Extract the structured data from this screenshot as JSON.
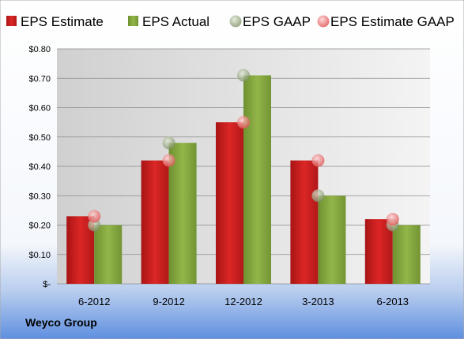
{
  "company": "Weyco Group",
  "colors": {
    "estimate": "#cc1f1f",
    "actual": "#86a83c",
    "gaap": "#98a884",
    "estimate_gaap": "#f07a7a"
  },
  "chart_data": {
    "type": "bar",
    "categories": [
      "6-2012",
      "9-2012",
      "12-2012",
      "3-2013",
      "6-2013"
    ],
    "series": [
      {
        "name": "EPS Estimate",
        "kind": "bar",
        "values": [
          0.23,
          0.42,
          0.55,
          0.42,
          0.22
        ]
      },
      {
        "name": "EPS Actual",
        "kind": "bar",
        "values": [
          0.2,
          0.48,
          0.71,
          0.3,
          0.2
        ]
      },
      {
        "name": "EPS GAAP",
        "kind": "scatter",
        "values": [
          0.2,
          0.48,
          0.71,
          0.3,
          0.2
        ]
      },
      {
        "name": "EPS Estimate GAAP",
        "kind": "scatter",
        "values": [
          0.23,
          0.42,
          0.55,
          0.42,
          0.22
        ]
      }
    ],
    "yticks": [
      "$-",
      "$0.10",
      "$0.20",
      "$0.30",
      "$0.40",
      "$0.50",
      "$0.60",
      "$0.70",
      "$0.80"
    ],
    "ylim": [
      0,
      0.8
    ],
    "grid": true,
    "legend_position": "top"
  }
}
